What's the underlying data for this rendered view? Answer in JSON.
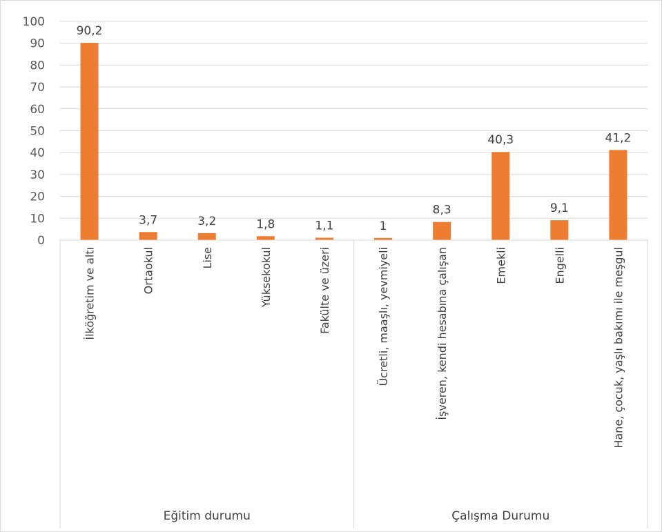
{
  "chart_data": {
    "type": "bar",
    "title": "",
    "xlabel": "",
    "ylabel": "",
    "ylim": [
      0,
      100
    ],
    "yticks": [
      0,
      10,
      20,
      30,
      40,
      50,
      60,
      70,
      80,
      90,
      100
    ],
    "grid": true,
    "legend": "none",
    "bar_color": "#ED7D31",
    "categories": [
      "İlköğretim ve altı",
      "Ortaokul",
      "Lise",
      "Yüksekokul",
      "Fakülte ve üzeri",
      "Ücretli, maaşlı, yevmiyeli",
      "İşveren, kendi hesabına çalışan",
      "Emekli",
      "Engelli",
      "Hane, çocuk, yaşlı bakımı ile meşgul"
    ],
    "values": [
      90.2,
      3.7,
      3.2,
      1.8,
      1.1,
      1,
      8.3,
      40.3,
      9.1,
      41.2
    ],
    "value_labels": [
      "90,2",
      "3,7",
      "3,2",
      "1,8",
      "1,1",
      "1",
      "8,3",
      "40,3",
      "9,1",
      "41,2"
    ],
    "groups": [
      {
        "name": "Eğitim durumu",
        "count": 5
      },
      {
        "name": "Çalışma Durumu",
        "count": 5
      }
    ]
  }
}
